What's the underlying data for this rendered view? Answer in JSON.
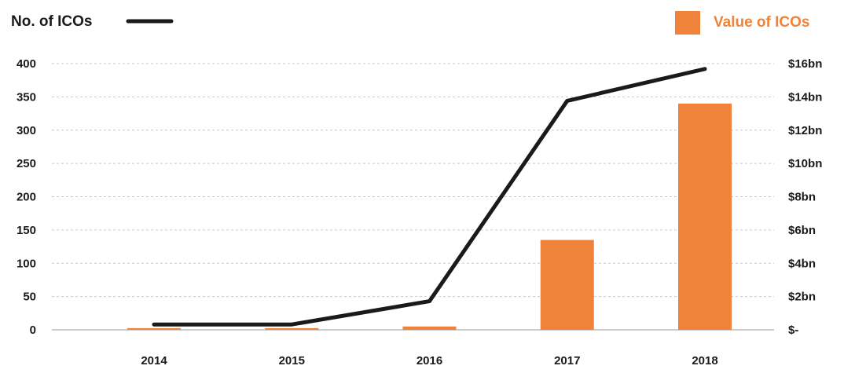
{
  "chart_data": {
    "type": "bar",
    "categories": [
      "2014",
      "2015",
      "2016",
      "2017",
      "2018"
    ],
    "series": [
      {
        "name": "Value of ICOs",
        "type": "bar",
        "axis": "right",
        "color": "#f0833a",
        "values": [
          0.1,
          0.1,
          0.2,
          5.4,
          13.6
        ]
      },
      {
        "name": "No. of ICOs",
        "type": "line",
        "axis": "left",
        "color": "#1a1a1a",
        "values": [
          8,
          8,
          43,
          344,
          392
        ]
      }
    ],
    "y_left": {
      "ylim": [
        0,
        400
      ],
      "ticks": [
        {
          "value": 0,
          "label": "0"
        },
        {
          "value": 50,
          "label": "50"
        },
        {
          "value": 100,
          "label": "100"
        },
        {
          "value": 150,
          "label": "150"
        },
        {
          "value": 200,
          "label": "200"
        },
        {
          "value": 250,
          "label": "250"
        },
        {
          "value": 300,
          "label": "300"
        },
        {
          "value": 350,
          "label": "350"
        },
        {
          "value": 400,
          "label": "400"
        }
      ]
    },
    "y_right": {
      "ylim": [
        0,
        16
      ],
      "ticks": [
        {
          "value": 0,
          "label": "$-"
        },
        {
          "value": 2,
          "label": "$2bn"
        },
        {
          "value": 4,
          "label": "$4bn"
        },
        {
          "value": 6,
          "label": "$6bn"
        },
        {
          "value": 8,
          "label": "$8bn"
        },
        {
          "value": 10,
          "label": "$10bn"
        },
        {
          "value": 12,
          "label": "$12bn"
        },
        {
          "value": 14,
          "label": "$14bn"
        },
        {
          "value": 16,
          "label": "$16bn"
        }
      ]
    },
    "grid": "horizontal dashed",
    "legend": {
      "line_label": "No. of ICOs",
      "line_placement": "top-left",
      "bar_label": "Value of ICOs",
      "bar_placement": "top-right",
      "bar_label_color": "#f0833a"
    }
  }
}
